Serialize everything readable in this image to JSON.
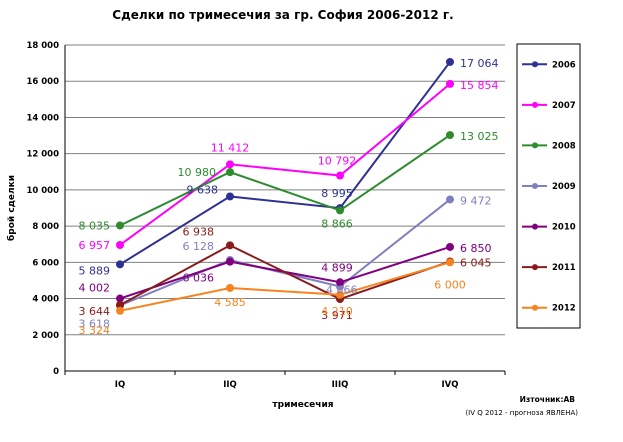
{
  "chart_data": {
    "type": "line",
    "title": "Сделки по тримесечия за гр. София 2006-2012 г.",
    "xlabel": "тримесечия",
    "ylabel": "брой сделки",
    "ylim": [
      0,
      18000
    ],
    "yticks": [
      "0",
      "2 000",
      "4 000",
      "6 000",
      "8 000",
      "10 000",
      "12 000",
      "14 000",
      "16 000",
      "18 000"
    ],
    "grid": true,
    "legend_position": "right",
    "categories": [
      "IQ",
      "IIQ",
      "IIIQ",
      "IVQ"
    ],
    "series": [
      {
        "name": "2006",
        "color": "#2e3192",
        "values": [
          5889,
          9638,
          8995,
          17064
        ],
        "labels": [
          "5 889",
          "9 638",
          "8 995",
          "17 064"
        ]
      },
      {
        "name": "2007",
        "color": "#ff00ff",
        "values": [
          6957,
          11412,
          10792,
          15854
        ],
        "labels": [
          "6 957",
          "11 412",
          "10 792",
          "15 854"
        ]
      },
      {
        "name": "2008",
        "color": "#2e8b2e",
        "values": [
          8035,
          10980,
          8866,
          13025
        ],
        "labels": [
          "8 035",
          "10 980",
          "8 866",
          "13 025"
        ]
      },
      {
        "name": "2009",
        "color": "#8080c0",
        "values": [
          3618,
          6128,
          4666,
          9472
        ],
        "labels": [
          "3 618",
          "6 128",
          "4 666",
          "9 472"
        ]
      },
      {
        "name": "2010",
        "color": "#800080",
        "values": [
          4002,
          6036,
          4899,
          6850
        ],
        "labels": [
          "4 002",
          "6 036",
          "4 899",
          "6 850"
        ]
      },
      {
        "name": "2011",
        "color": "#8b1a1a",
        "values": [
          3644,
          6938,
          3971,
          6045
        ],
        "labels": [
          "3 644",
          "6 938",
          "3 971",
          "6 045"
        ]
      },
      {
        "name": "2012",
        "color": "#f7831f",
        "values": [
          3324,
          4585,
          4210,
          6000
        ],
        "labels": [
          "3 324",
          "4 585",
          "4 210",
          "6 000"
        ]
      }
    ]
  },
  "notes": {
    "source": "Източник:АВ",
    "forecast": "(IV Q 2012 - прогноза ЯВЛЕНА)"
  }
}
